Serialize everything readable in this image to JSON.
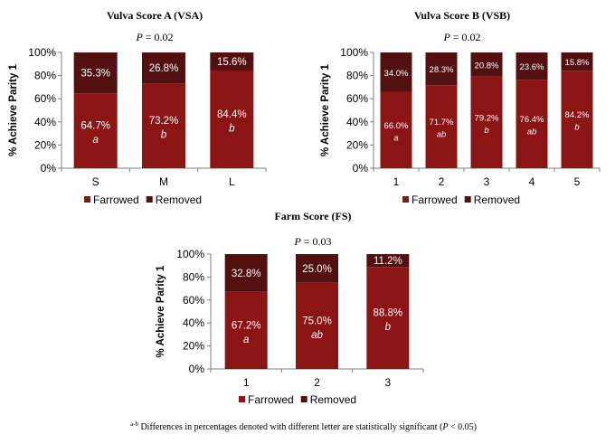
{
  "chart_data": [
    {
      "type": "bar",
      "stacked": true,
      "title": "Vulva Score A (VSA)",
      "subtitle_p": "P",
      "subtitle_value": " = 0.02",
      "ylabel": "% Achieve Parity 1",
      "ylim": [
        0,
        100
      ],
      "yticks": [
        "0%",
        "20%",
        "40%",
        "60%",
        "80%",
        "100%"
      ],
      "categories": [
        "S",
        "M",
        "L"
      ],
      "series": [
        {
          "name": "Farrowed",
          "values": [
            64.7,
            73.2,
            84.4
          ],
          "labels": [
            "64.7%",
            "73.2%",
            "84.4%"
          ],
          "color": "#8b1414"
        },
        {
          "name": "Removed",
          "values": [
            35.3,
            26.8,
            15.6
          ],
          "labels": [
            "35.3%",
            "26.8%",
            "15.6%"
          ],
          "color": "#521010"
        }
      ],
      "significance": [
        "a",
        "b",
        "b"
      ],
      "legend": "bottom"
    },
    {
      "type": "bar",
      "stacked": true,
      "title": "Vulva Score B (VSB)",
      "subtitle_p": "P",
      "subtitle_value": " = 0.02",
      "ylabel": "% Achieve Parity 1",
      "ylim": [
        0,
        100
      ],
      "yticks": [
        "0%",
        "20%",
        "40%",
        "60%",
        "80%",
        "100%"
      ],
      "categories": [
        "1",
        "2",
        "3",
        "4",
        "5"
      ],
      "series": [
        {
          "name": "Farrowed",
          "values": [
            66.0,
            71.7,
            79.2,
            76.4,
            84.2
          ],
          "labels": [
            "66.0%",
            "71.7%",
            "79.2%",
            "76.4%",
            "84.2%"
          ],
          "color": "#8b1414"
        },
        {
          "name": "Removed",
          "values": [
            34.0,
            28.3,
            20.8,
            23.6,
            15.8
          ],
          "labels": [
            "34.0%",
            "28.3%",
            "20.8%",
            "23.6%",
            "15.8%"
          ],
          "color": "#521010"
        }
      ],
      "significance": [
        "a",
        "ab",
        "b",
        "ab",
        "b"
      ],
      "legend": "bottom"
    },
    {
      "type": "bar",
      "stacked": true,
      "title": "Farm Score (FS)",
      "subtitle_p": "P",
      "subtitle_value": " = 0.03",
      "ylabel": "% Achieve Parity 1",
      "ylim": [
        0,
        100
      ],
      "yticks": [
        "0%",
        "20%",
        "40%",
        "60%",
        "80%",
        "100%"
      ],
      "categories": [
        "1",
        "2",
        "3"
      ],
      "series": [
        {
          "name": "Farrowed",
          "values": [
            67.2,
            75.0,
            88.8
          ],
          "labels": [
            "67.2%",
            "75.0%",
            "88.8%"
          ],
          "color": "#8b1414"
        },
        {
          "name": "Removed",
          "values": [
            32.8,
            25.0,
            11.2
          ],
          "labels": [
            "32.8%",
            "25.0%",
            "11.2%"
          ],
          "color": "#521010"
        }
      ],
      "significance": [
        "a",
        "ab",
        "b"
      ],
      "legend": "bottom"
    }
  ],
  "footnote": {
    "superscript": "a-b",
    "text": " Differences in percentages denoted with different letter are statistically  significant (",
    "p": "P",
    "p_value": " < 0.05)"
  }
}
